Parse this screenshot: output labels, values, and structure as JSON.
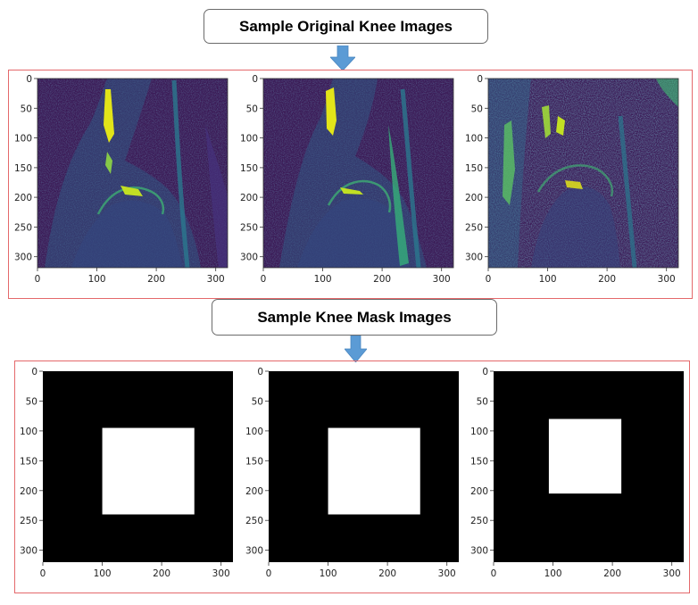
{
  "headers": {
    "original": "Sample Original Knee Images",
    "mask": "Sample Knee Mask Images"
  },
  "colors": {
    "frame_border": "#e4686b",
    "arrow_fill": "#5b9bd5",
    "mri_background": "#3b1a56",
    "mri_highlight": "#e2e419",
    "mask_background": "#000000",
    "mask_region": "#ffffff"
  },
  "axes": {
    "x_ticks": [
      "0",
      "100",
      "200",
      "300"
    ],
    "y_ticks": [
      "0",
      "50",
      "100",
      "150",
      "200",
      "250",
      "300"
    ],
    "x_range": [
      0,
      320
    ],
    "y_range": [
      0,
      320
    ]
  },
  "original_images": [
    {
      "colormap": "viridis",
      "content": "sagittal knee MRI slice"
    },
    {
      "colormap": "viridis",
      "content": "sagittal knee MRI slice"
    },
    {
      "colormap": "viridis",
      "content": "sagittal knee MRI slice"
    }
  ],
  "mask_images": [
    {
      "x": [
        100,
        255
      ],
      "y": [
        95,
        240
      ]
    },
    {
      "x": [
        100,
        255
      ],
      "y": [
        95,
        240
      ]
    },
    {
      "x": [
        93,
        215
      ],
      "y": [
        80,
        205
      ]
    }
  ]
}
